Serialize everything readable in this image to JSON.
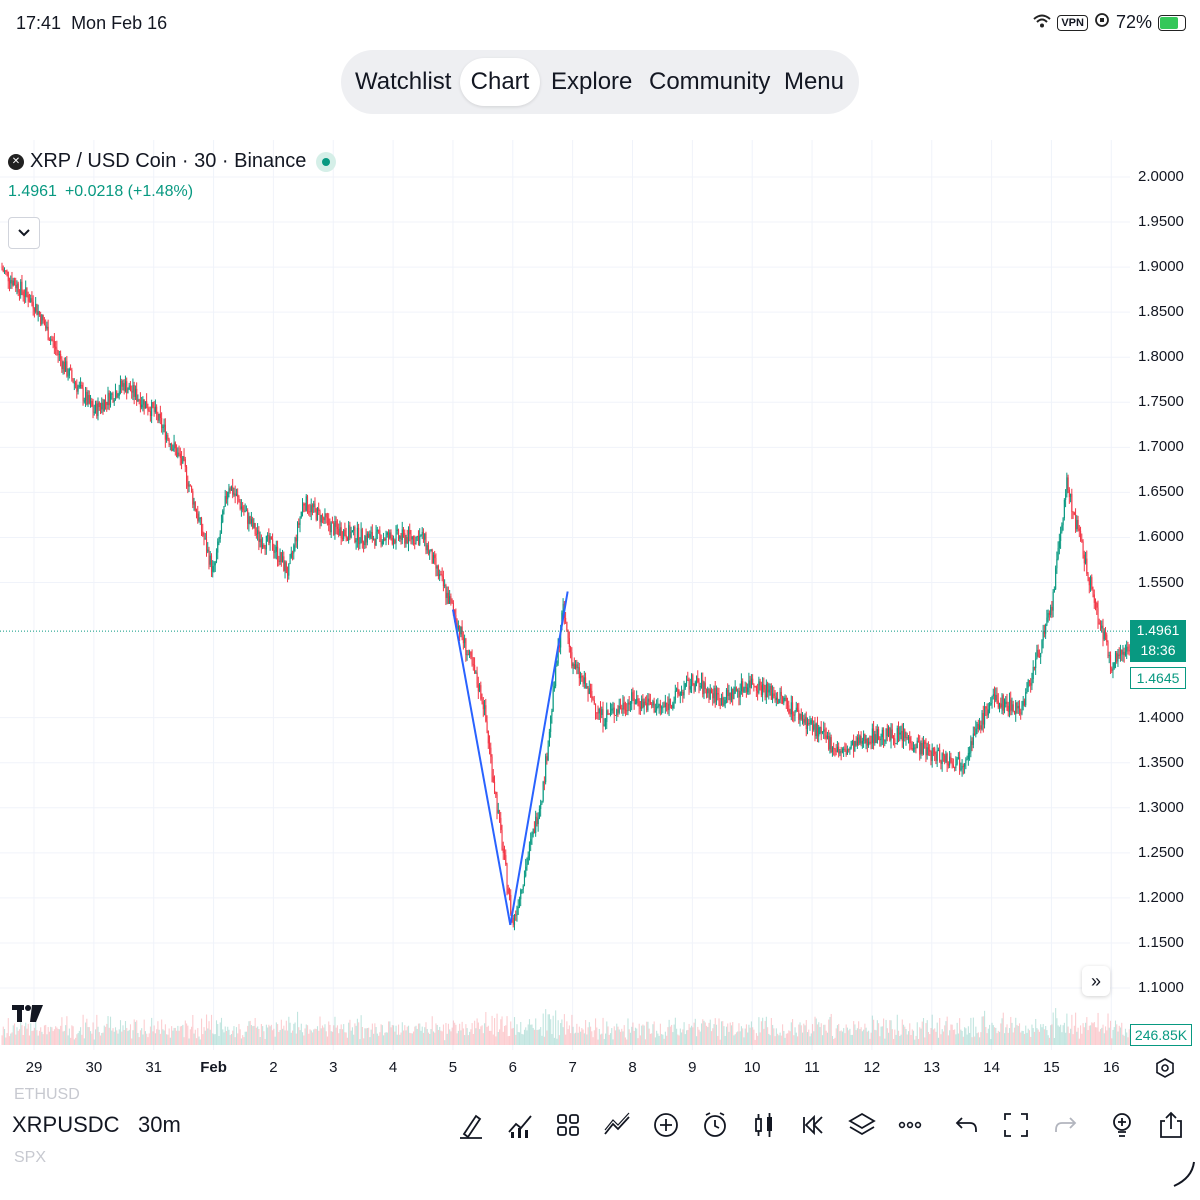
{
  "status": {
    "time": "17:41",
    "date": "Mon Feb 16",
    "vpn": "VPN",
    "battery": "72%"
  },
  "nav": [
    "Watchlist",
    "Chart",
    "Explore",
    "Community",
    "Menu"
  ],
  "legend": {
    "symbol": "XRP / USD Coin · 30 · Binance",
    "price": "1.4961",
    "change": "+0.0218 (+1.48%)"
  },
  "price_axis": [
    "2.0000",
    "1.9500",
    "1.9000",
    "1.8500",
    "1.8000",
    "1.7500",
    "1.7000",
    "1.6500",
    "1.6000",
    "1.5500",
    "1.4000",
    "1.3500",
    "1.3000",
    "1.2500",
    "1.2000",
    "1.1500",
    "1.1000"
  ],
  "time_axis": [
    "29",
    "30",
    "31",
    "Feb",
    "2",
    "3",
    "4",
    "5",
    "6",
    "7",
    "8",
    "9",
    "10",
    "11",
    "12",
    "13",
    "14",
    "15",
    "16"
  ],
  "last_price_tag": {
    "price": "1.4961",
    "countdown": "18:36"
  },
  "secondary_price_tag": "1.4645",
  "volume_tag": "246.85K",
  "bottom": {
    "ghost_above": "ETHUSD",
    "symbol": "XRPUSDC",
    "timeframe": "30m",
    "ghost_below": "SPX"
  },
  "toolbar_icons": [
    "drawing-pen-icon",
    "indicators-icon",
    "layouts-icon",
    "trend-tool-icon",
    "add-icon",
    "alert-icon",
    "candle-type-icon",
    "replay-icon",
    "layers-icon",
    "more-icon",
    "undo-icon",
    "fullscreen-icon",
    "redo-icon",
    "ideas-icon",
    "share-icon"
  ],
  "chart_data": {
    "type": "candlestick",
    "symbol": "XRP / USD Coin",
    "interval": "30",
    "exchange": "Binance",
    "y_range": [
      1.1,
      2.0
    ],
    "x_range": [
      "Jan 29",
      "Feb 16"
    ],
    "grid": true,
    "last_price": 1.4961,
    "close_path": [
      [
        "Jan 28",
        1.93
      ],
      [
        "Jan 29",
        1.86
      ],
      [
        "Jan 29 12h",
        1.79
      ],
      [
        "Jan 30",
        1.74
      ],
      [
        "Jan 30 12h",
        1.77
      ],
      [
        "Jan 31",
        1.74
      ],
      [
        "Jan 31 12h",
        1.68
      ],
      [
        "Feb 1",
        1.56
      ],
      [
        "Feb 1 6h",
        1.66
      ],
      [
        "Feb 1 18h",
        1.6
      ],
      [
        "Feb 2",
        1.59
      ],
      [
        "Feb 2 6h",
        1.56
      ],
      [
        "Feb 2 12h",
        1.64
      ],
      [
        "Feb 3",
        1.61
      ],
      [
        "Feb 3 12h",
        1.6
      ],
      [
        "Feb 4",
        1.6
      ],
      [
        "Feb 4 12h",
        1.6
      ],
      [
        "Feb 5",
        1.52
      ],
      [
        "Feb 5 12h",
        1.42
      ],
      [
        "Feb 6",
        1.17
      ],
      [
        "Feb 6 12h",
        1.32
      ],
      [
        "Feb 6 20h",
        1.52
      ],
      [
        "Feb 7",
        1.46
      ],
      [
        "Feb 7 12h",
        1.4
      ],
      [
        "Feb 8",
        1.42
      ],
      [
        "Feb 8 12h",
        1.41
      ],
      [
        "Feb 9",
        1.44
      ],
      [
        "Feb 9 12h",
        1.42
      ],
      [
        "Feb 10",
        1.44
      ],
      [
        "Feb 10 12h",
        1.42
      ],
      [
        "Feb 11",
        1.39
      ],
      [
        "Feb 11 12h",
        1.36
      ],
      [
        "Feb 12",
        1.38
      ],
      [
        "Feb 12 12h",
        1.38
      ],
      [
        "Feb 13",
        1.36
      ],
      [
        "Feb 13 12h",
        1.35
      ],
      [
        "Feb 14",
        1.42
      ],
      [
        "Feb 14 12h",
        1.41
      ],
      [
        "Feb 15",
        1.52
      ],
      [
        "Feb 15 6h",
        1.66
      ],
      [
        "Feb 15 18h",
        1.52
      ],
      [
        "Feb 16",
        1.46
      ],
      [
        "Feb 16 12h",
        1.4961
      ]
    ],
    "trendlines": [
      {
        "from": [
          "Feb 5",
          1.52
        ],
        "to": [
          "Feb 5 23h",
          1.17
        ]
      },
      {
        "from": [
          "Feb 5 23h",
          1.17
        ],
        "to": [
          "Feb 6 22h",
          1.54
        ]
      }
    ]
  }
}
